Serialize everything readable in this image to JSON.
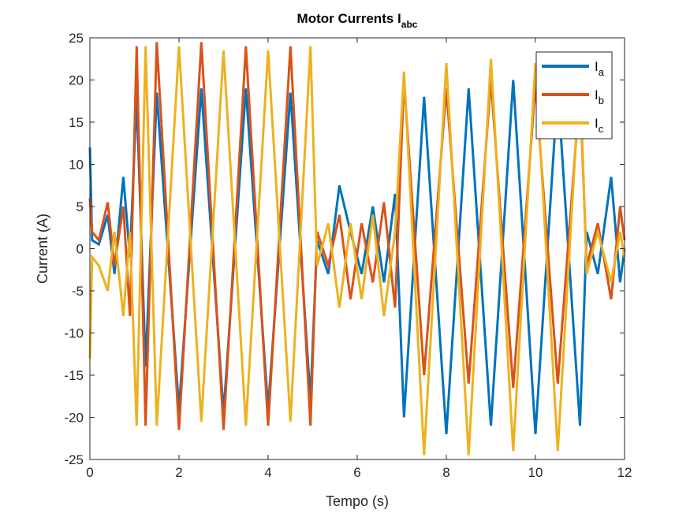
{
  "chart_data": {
    "type": "line",
    "title": "Motor Currents I",
    "title_subscript": "abc",
    "xlabel": "Tempo (s)",
    "ylabel": "Current (A)",
    "xlim": [
      0,
      12
    ],
    "ylim": [
      -25,
      25
    ],
    "xticks": [
      0,
      2,
      4,
      6,
      8,
      10,
      12
    ],
    "yticks": [
      -25,
      -20,
      -15,
      -10,
      -5,
      0,
      5,
      10,
      15,
      20,
      25
    ],
    "grid": false,
    "legend_position": "top-right",
    "series": [
      {
        "name": "I",
        "subscript": "a",
        "color": "#0072BD",
        "points": [
          [
            0.0,
            12.0
          ],
          [
            0.05,
            1.0
          ],
          [
            0.2,
            0.5
          ],
          [
            0.4,
            4.0
          ],
          [
            0.55,
            -3.0
          ],
          [
            0.75,
            8.5
          ],
          [
            0.9,
            -1.0
          ],
          [
            1.05,
            18.0
          ],
          [
            1.25,
            -14.0
          ],
          [
            1.5,
            18.5
          ],
          [
            2.0,
            -19.0
          ],
          [
            2.5,
            19.0
          ],
          [
            3.0,
            -19.5
          ],
          [
            3.5,
            19.0
          ],
          [
            4.0,
            -19.0
          ],
          [
            4.5,
            18.5
          ],
          [
            4.95,
            -18.0
          ],
          [
            5.1,
            1.0
          ],
          [
            5.35,
            -3.0
          ],
          [
            5.6,
            7.5
          ],
          [
            5.85,
            2.0
          ],
          [
            6.1,
            -3.0
          ],
          [
            6.35,
            5.0
          ],
          [
            6.6,
            -4.0
          ],
          [
            6.85,
            6.5
          ],
          [
            7.05,
            -20.0
          ],
          [
            7.5,
            18.0
          ],
          [
            8.0,
            -22.0
          ],
          [
            8.5,
            19.0
          ],
          [
            9.0,
            -21.0
          ],
          [
            9.5,
            20.0
          ],
          [
            10.0,
            -22.0
          ],
          [
            10.5,
            19.0
          ],
          [
            11.0,
            -21.0
          ],
          [
            11.15,
            2.0
          ],
          [
            11.4,
            -3.0
          ],
          [
            11.7,
            8.5
          ],
          [
            11.9,
            -4.0
          ],
          [
            12.0,
            0.0
          ]
        ]
      },
      {
        "name": "I",
        "subscript": "b",
        "color": "#D95319",
        "points": [
          [
            0.0,
            6.0
          ],
          [
            0.05,
            2.0
          ],
          [
            0.2,
            1.0
          ],
          [
            0.4,
            5.5
          ],
          [
            0.55,
            -2.0
          ],
          [
            0.75,
            5.0
          ],
          [
            0.9,
            -8.0
          ],
          [
            1.05,
            24.0
          ],
          [
            1.25,
            -21.0
          ],
          [
            1.5,
            24.5
          ],
          [
            2.0,
            -21.5
          ],
          [
            2.5,
            24.5
          ],
          [
            3.0,
            -21.5
          ],
          [
            3.5,
            24.0
          ],
          [
            4.0,
            -21.0
          ],
          [
            4.5,
            24.0
          ],
          [
            4.95,
            -21.0
          ],
          [
            5.1,
            2.0
          ],
          [
            5.35,
            -2.0
          ],
          [
            5.6,
            4.0
          ],
          [
            5.85,
            -6.0
          ],
          [
            6.1,
            3.0
          ],
          [
            6.35,
            -4.0
          ],
          [
            6.6,
            5.5
          ],
          [
            6.85,
            -7.0
          ],
          [
            7.05,
            20.0
          ],
          [
            7.5,
            -15.0
          ],
          [
            8.0,
            19.0
          ],
          [
            8.5,
            -16.0
          ],
          [
            9.0,
            20.0
          ],
          [
            9.5,
            -16.5
          ],
          [
            10.0,
            19.5
          ],
          [
            10.5,
            -16.0
          ],
          [
            11.0,
            19.0
          ],
          [
            11.15,
            -2.0
          ],
          [
            11.4,
            3.0
          ],
          [
            11.7,
            -6.0
          ],
          [
            11.9,
            5.0
          ],
          [
            12.0,
            1.0
          ]
        ]
      },
      {
        "name": "I",
        "subscript": "c",
        "color": "#EDB120",
        "points": [
          [
            0.0,
            -13.0
          ],
          [
            0.05,
            -1.0
          ],
          [
            0.2,
            -2.0
          ],
          [
            0.4,
            -5.0
          ],
          [
            0.55,
            2.0
          ],
          [
            0.75,
            -8.0
          ],
          [
            0.9,
            2.0
          ],
          [
            1.05,
            -21.0
          ],
          [
            1.25,
            24.0
          ],
          [
            1.5,
            -21.0
          ],
          [
            2.0,
            24.0
          ],
          [
            2.5,
            -20.5
          ],
          [
            3.0,
            23.5
          ],
          [
            3.5,
            -21.0
          ],
          [
            4.0,
            23.5
          ],
          [
            4.5,
            -20.5
          ],
          [
            4.95,
            24.0
          ],
          [
            5.1,
            -2.0
          ],
          [
            5.35,
            3.0
          ],
          [
            5.6,
            -7.0
          ],
          [
            5.85,
            3.0
          ],
          [
            6.1,
            -6.0
          ],
          [
            6.35,
            4.0
          ],
          [
            6.6,
            -8.0
          ],
          [
            6.85,
            2.0
          ],
          [
            7.05,
            21.0
          ],
          [
            7.5,
            -24.5
          ],
          [
            8.0,
            22.0
          ],
          [
            8.5,
            -24.5
          ],
          [
            9.0,
            22.5
          ],
          [
            9.5,
            -24.0
          ],
          [
            10.0,
            22.0
          ],
          [
            10.5,
            -24.0
          ],
          [
            11.0,
            21.0
          ],
          [
            11.15,
            -3.0
          ],
          [
            11.4,
            2.0
          ],
          [
            11.7,
            -4.0
          ],
          [
            11.9,
            2.0
          ],
          [
            12.0,
            -1.0
          ]
        ]
      }
    ]
  }
}
